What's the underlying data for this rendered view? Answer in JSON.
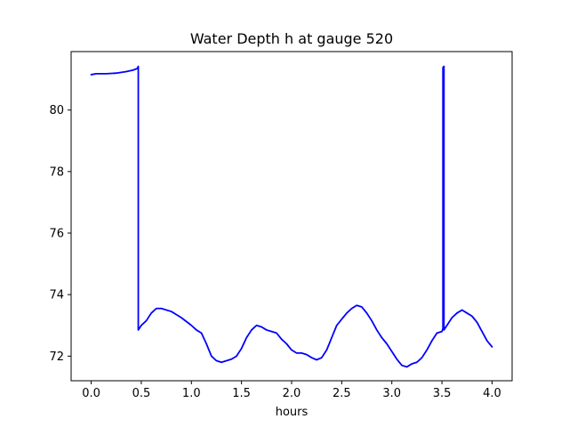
{
  "chart_data": {
    "type": "line",
    "title": "Water Depth h at gauge 520",
    "xlabel": "hours",
    "ylabel": "",
    "xlim": [
      -0.2,
      4.2
    ],
    "ylim": [
      71.2,
      81.9
    ],
    "xticks": [
      0.0,
      0.5,
      1.0,
      1.5,
      2.0,
      2.5,
      3.0,
      3.5,
      4.0
    ],
    "xtick_labels": [
      "0.0",
      "0.5",
      "1.0",
      "1.5",
      "2.0",
      "2.5",
      "3.0",
      "3.5",
      "4.0"
    ],
    "yticks": [
      72,
      74,
      76,
      78,
      80
    ],
    "ytick_labels": [
      "72",
      "74",
      "76",
      "78",
      "80"
    ],
    "grid": false,
    "line_color": "#0000ff",
    "series": [
      {
        "x": [
          0.0,
          0.05,
          0.15,
          0.25,
          0.35,
          0.42,
          0.46,
          0.47,
          0.47,
          0.48,
          0.5,
          0.55,
          0.6,
          0.65,
          0.7,
          0.8,
          0.85,
          0.9,
          1.0,
          1.05,
          1.1,
          1.15,
          1.2,
          1.25,
          1.3,
          1.35,
          1.4,
          1.45,
          1.5,
          1.55,
          1.6,
          1.65,
          1.7,
          1.75,
          1.8,
          1.85,
          1.9,
          1.95,
          2.0,
          2.05,
          2.1,
          2.15,
          2.2,
          2.25,
          2.3,
          2.35,
          2.4,
          2.45,
          2.5,
          2.55,
          2.6,
          2.65,
          2.7,
          2.75,
          2.8,
          2.85,
          2.9,
          2.95,
          3.0,
          3.05,
          3.1,
          3.15,
          3.2,
          3.25,
          3.3,
          3.35,
          3.4,
          3.45,
          3.5,
          3.51,
          3.51,
          3.52,
          3.52,
          3.53,
          3.55,
          3.6,
          3.65,
          3.7,
          3.75,
          3.8,
          3.85,
          3.9,
          3.95,
          4.0
        ],
        "y": [
          81.15,
          81.18,
          81.18,
          81.2,
          81.25,
          81.3,
          81.35,
          81.42,
          72.85,
          72.9,
          73.0,
          73.15,
          73.4,
          73.55,
          73.55,
          73.45,
          73.35,
          73.25,
          73.0,
          72.85,
          72.75,
          72.4,
          72.0,
          71.85,
          71.8,
          71.85,
          71.9,
          72.0,
          72.25,
          72.6,
          72.85,
          73.0,
          72.95,
          72.85,
          72.8,
          72.75,
          72.55,
          72.4,
          72.2,
          72.1,
          72.1,
          72.05,
          71.95,
          71.88,
          71.95,
          72.2,
          72.6,
          73.0,
          73.2,
          73.4,
          73.55,
          73.65,
          73.6,
          73.4,
          73.15,
          72.85,
          72.6,
          72.4,
          72.15,
          71.9,
          71.7,
          71.65,
          71.75,
          71.8,
          71.95,
          72.2,
          72.5,
          72.75,
          72.8,
          72.9,
          81.38,
          81.42,
          72.85,
          72.9,
          73.0,
          73.25,
          73.4,
          73.5,
          73.4,
          73.3,
          73.1,
          72.8,
          72.5,
          72.3
        ]
      }
    ]
  }
}
